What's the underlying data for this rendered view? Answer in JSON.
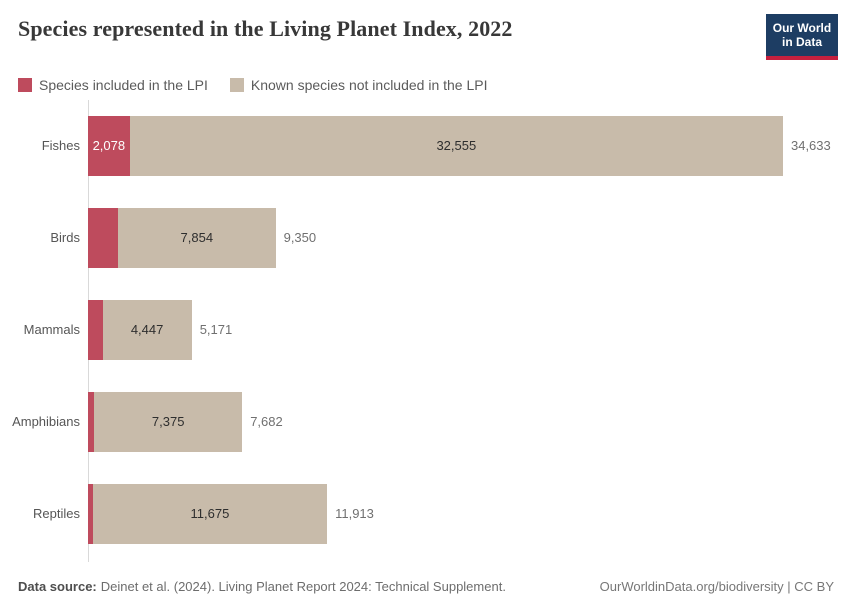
{
  "header": {
    "title": "Species represented in the Living Planet Index, 2022",
    "logo": {
      "line1": "Our World",
      "line2": "in Data"
    }
  },
  "legend": [
    {
      "label": "Species included in the LPI",
      "color": "#be4b5d"
    },
    {
      "label": "Known species not included in the LPI",
      "color": "#c8bbaa"
    }
  ],
  "chart_data": {
    "type": "bar",
    "orientation": "horizontal",
    "stacked": true,
    "title": "Species represented in the Living Planet Index, 2022",
    "categories": [
      "Fishes",
      "Birds",
      "Mammals",
      "Amphibians",
      "Reptiles"
    ],
    "series": [
      {
        "name": "Species included in the LPI",
        "color": "#be4b5d",
        "values": [
          2078,
          1496,
          724,
          307,
          238
        ],
        "labels": [
          "2,078",
          "",
          "",
          "",
          ""
        ]
      },
      {
        "name": "Known species not included in the LPI",
        "color": "#c8bbaa",
        "values": [
          32555,
          7854,
          4447,
          7375,
          11675
        ],
        "labels": [
          "32,555",
          "7,854",
          "4,447",
          "7,375",
          "11,675"
        ]
      }
    ],
    "totals": [
      34633,
      9350,
      5171,
      7682,
      11913
    ],
    "total_labels": [
      "34,633",
      "9,350",
      "5,171",
      "7,682",
      "11,913"
    ],
    "xmax": 34633,
    "xlabel": "",
    "ylabel": "",
    "grid": false,
    "legend_position": "top"
  },
  "footer": {
    "source_label": "Data source:",
    "source_text": "Deinet et al. (2024). Living Planet Report 2024: Technical Supplement.",
    "attribution": "OurWorldinData.org/biodiversity | CC BY"
  },
  "colors": {
    "included": "#be4b5d",
    "not_included": "#c8bbaa",
    "logo_navy": "#1d3d63",
    "logo_red": "#c5203e",
    "axis_line": "#d9d9d9",
    "title_text": "#383838",
    "label_text": "#565656",
    "total_text": "#707070"
  }
}
